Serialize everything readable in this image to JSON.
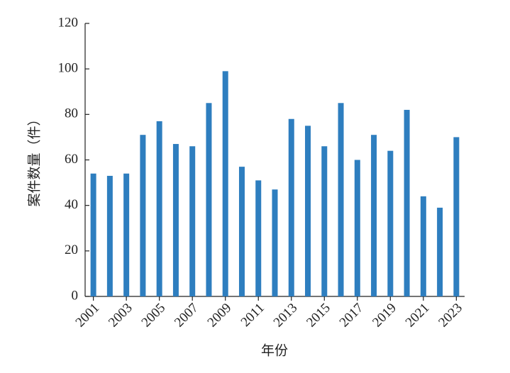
{
  "chart_data": {
    "type": "bar",
    "x_label": "年份",
    "y_label": "案件数量（件）",
    "categories": [
      "2001",
      null,
      "2003",
      null,
      "2005",
      null,
      "2007",
      null,
      "2009",
      null,
      "2011",
      null,
      "2013",
      null,
      "2015",
      null,
      "2017",
      null,
      "2019",
      null,
      "2021",
      null,
      "2023"
    ],
    "values": [
      54,
      53,
      54,
      71,
      77,
      67,
      66,
      85,
      99,
      57,
      51,
      47,
      78,
      75,
      66,
      85,
      60,
      71,
      64,
      82,
      44,
      39,
      70
    ],
    "color": "#2e7ebf",
    "ylim": [
      0,
      120
    ],
    "yticks": [
      0,
      20,
      40,
      60,
      80,
      100,
      120
    ],
    "grid": false
  }
}
